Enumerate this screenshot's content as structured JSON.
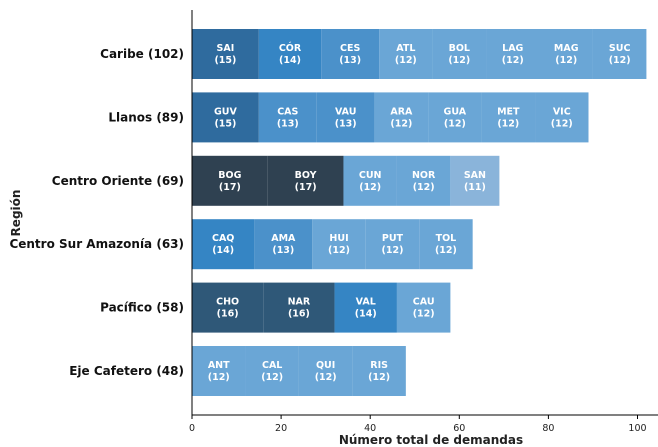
{
  "chart_data": {
    "type": "bar",
    "orientation": "horizontal",
    "stacked": true,
    "xlabel": "Número total de demandas",
    "ylabel": "Región",
    "xlim": [
      0,
      105
    ],
    "xticks": [
      0,
      20,
      40,
      60,
      80,
      100
    ],
    "grid": false,
    "categories": [
      {
        "label": "Caribe (102)",
        "segments": [
          {
            "code": "SAI",
            "value": 15,
            "label": "(15)"
          },
          {
            "code": "CÓR",
            "value": 14,
            "label": "(14)"
          },
          {
            "code": "CES",
            "value": 13,
            "label": "(13)"
          },
          {
            "code": "ATL",
            "value": 12,
            "label": "(12)"
          },
          {
            "code": "BOL",
            "value": 12,
            "label": "(12)"
          },
          {
            "code": "LAG",
            "value": 12,
            "label": "(12)"
          },
          {
            "code": "MAG",
            "value": 12,
            "label": "(12)"
          },
          {
            "code": "SUC",
            "value": 12,
            "label": "(12)"
          }
        ]
      },
      {
        "label": "Llanos (89)",
        "segments": [
          {
            "code": "GUV",
            "value": 15,
            "label": "(15)"
          },
          {
            "code": "CAS",
            "value": 13,
            "label": "(13)"
          },
          {
            "code": "VAU",
            "value": 13,
            "label": "(13)"
          },
          {
            "code": "ARA",
            "value": 12,
            "label": "(12)"
          },
          {
            "code": "GUA",
            "value": 12,
            "label": "(12)"
          },
          {
            "code": "MET",
            "value": 12,
            "label": "(12)"
          },
          {
            "code": "VIC",
            "value": 12,
            "label": "(12)"
          }
        ]
      },
      {
        "label": "Centro Oriente (69)",
        "segments": [
          {
            "code": "BOG",
            "value": 17,
            "label": "(17)"
          },
          {
            "code": "BOY",
            "value": 17,
            "label": "(17)"
          },
          {
            "code": "CUN",
            "value": 12,
            "label": "(12)"
          },
          {
            "code": "NOR",
            "value": 12,
            "label": "(12)"
          },
          {
            "code": "SAN",
            "value": 11,
            "label": "(11)"
          }
        ]
      },
      {
        "label": "Centro Sur Amazonía (63)",
        "segments": [
          {
            "code": "CAQ",
            "value": 14,
            "label": "(14)"
          },
          {
            "code": "AMA",
            "value": 13,
            "label": "(13)"
          },
          {
            "code": "HUI",
            "value": 12,
            "label": "(12)"
          },
          {
            "code": "PUT",
            "value": 12,
            "label": "(12)"
          },
          {
            "code": "TOL",
            "value": 12,
            "label": "(12)"
          }
        ]
      },
      {
        "label": "Pacífico (58)",
        "segments": [
          {
            "code": "CHO",
            "value": 16,
            "label": "(16)"
          },
          {
            "code": "NAR",
            "value": 16,
            "label": "(16)"
          },
          {
            "code": "VAL",
            "value": 14,
            "label": "(14)"
          },
          {
            "code": "CAU",
            "value": 12,
            "label": "(12)"
          }
        ]
      },
      {
        "label": "Eje Cafetero (48)",
        "segments": [
          {
            "code": "ANT",
            "value": 12,
            "label": "(12)"
          },
          {
            "code": "CAL",
            "value": 12,
            "label": "(12)"
          },
          {
            "code": "QUI",
            "value": 12,
            "label": "(12)"
          },
          {
            "code": "RIS",
            "value": 12,
            "label": "(12)"
          }
        ]
      }
    ],
    "value_colors": {
      "11": "#8ab4da",
      "12": "#6aa6d6",
      "13": "#4b91ca",
      "14": "#3585c4",
      "15": "#2f6b9e",
      "16": "#2f5878",
      "17": "#2f4151"
    }
  }
}
